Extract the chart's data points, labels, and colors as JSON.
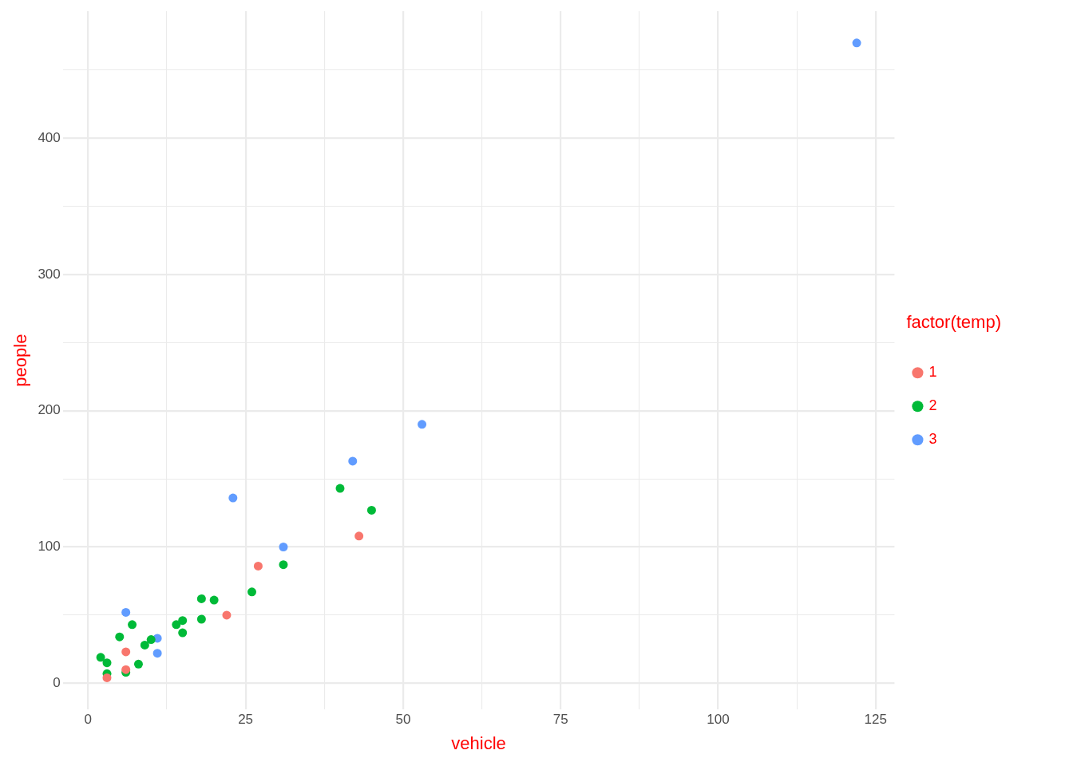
{
  "chart_data": {
    "type": "scatter",
    "xlabel": "vehicle",
    "ylabel": "people",
    "legend_title": "factor(temp)",
    "legend": "right",
    "grid": true,
    "marker": "circle",
    "xlim": [
      -4,
      128
    ],
    "ylim": [
      -19.3,
      493.3
    ],
    "xticks": [
      0,
      {
        "value": 12.5,
        "label": null
      },
      25,
      {
        "value": 37.5,
        "label": null
      },
      50,
      {
        "value": 62.5,
        "label": null
      },
      75,
      {
        "value": 87.5,
        "label": null
      },
      100,
      {
        "value": 112.5,
        "label": null
      },
      125
    ],
    "yticks": [
      0,
      {
        "value": 50,
        "label": null
      },
      100,
      {
        "value": 150,
        "label": null
      },
      200,
      {
        "value": 250,
        "label": null
      },
      300,
      {
        "value": 350,
        "label": null
      },
      400,
      {
        "value": 450,
        "label": null
      }
    ],
    "series": [
      {
        "name": "1",
        "color": "#f8766d",
        "x": [
          3,
          6,
          6,
          22,
          27,
          43
        ],
        "values": [
          4,
          10,
          23,
          50,
          86,
          108
        ]
      },
      {
        "name": "2",
        "color": "#00ba38",
        "x": [
          2,
          3,
          3,
          5,
          6,
          7,
          8,
          9,
          10,
          14,
          15,
          15,
          18,
          18,
          20,
          26,
          31,
          40,
          45
        ],
        "values": [
          19,
          15,
          7,
          34,
          8,
          43,
          14,
          28,
          32,
          43,
          46,
          37,
          62,
          47,
          61,
          67,
          87,
          143,
          127
        ]
      },
      {
        "name": "3",
        "color": "#619cff",
        "x": [
          6,
          11,
          11,
          23,
          31,
          42,
          53,
          122
        ],
        "values": [
          52,
          33,
          22,
          136,
          100,
          163,
          190,
          470
        ]
      }
    ]
  }
}
